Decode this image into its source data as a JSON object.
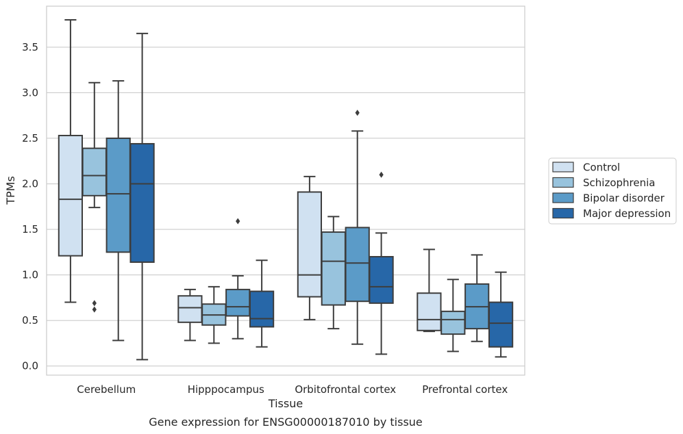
{
  "chart_data": {
    "type": "box",
    "title": "",
    "caption": "Gene expression for ENSG00000187010 by tissue",
    "xlabel": "Tissue",
    "ylabel": "TPMs",
    "ylim": [
      -0.1,
      3.95
    ],
    "yticks": [
      0.0,
      0.5,
      1.0,
      1.5,
      2.0,
      2.5,
      3.0,
      3.5
    ],
    "ytick_labels": [
      "0.0",
      "0.5",
      "1.0",
      "1.5",
      "2.0",
      "2.5",
      "3.0",
      "3.5"
    ],
    "grid": "horizontal",
    "legend_position": "right",
    "categories": [
      "Cerebellum",
      "Hipppocampus",
      "Orbitofrontal cortex",
      "Prefrontal cortex"
    ],
    "series": [
      {
        "name": "Control",
        "color": "#d0e1f1",
        "boxes": [
          {
            "whislo": 0.7,
            "q1": 1.21,
            "med": 1.83,
            "q3": 2.53,
            "whishi": 3.8,
            "fliers": []
          },
          {
            "whislo": 0.28,
            "q1": 0.48,
            "med": 0.64,
            "q3": 0.77,
            "whishi": 0.84,
            "fliers": []
          },
          {
            "whislo": 0.51,
            "q1": 0.76,
            "med": 1.0,
            "q3": 1.91,
            "whishi": 2.08,
            "fliers": []
          },
          {
            "whislo": 0.38,
            "q1": 0.39,
            "med": 0.51,
            "q3": 0.8,
            "whishi": 1.28,
            "fliers": []
          }
        ]
      },
      {
        "name": "Schizophrenia",
        "color": "#98c3dd",
        "boxes": [
          {
            "whislo": 1.74,
            "q1": 1.87,
            "med": 2.09,
            "q3": 2.39,
            "whishi": 3.11,
            "fliers": [
              0.69,
              0.62
            ]
          },
          {
            "whislo": 0.25,
            "q1": 0.45,
            "med": 0.56,
            "q3": 0.68,
            "whishi": 0.87,
            "fliers": []
          },
          {
            "whislo": 0.41,
            "q1": 0.67,
            "med": 1.15,
            "q3": 1.47,
            "whishi": 1.64,
            "fliers": []
          },
          {
            "whislo": 0.16,
            "q1": 0.35,
            "med": 0.51,
            "q3": 0.6,
            "whishi": 0.95,
            "fliers": []
          }
        ]
      },
      {
        "name": "Bipolar disorder",
        "color": "#5b9bc8",
        "boxes": [
          {
            "whislo": 0.28,
            "q1": 1.25,
            "med": 1.89,
            "q3": 2.5,
            "whishi": 3.13,
            "fliers": []
          },
          {
            "whislo": 0.3,
            "q1": 0.55,
            "med": 0.65,
            "q3": 0.84,
            "whishi": 0.99,
            "fliers": [
              1.59
            ]
          },
          {
            "whislo": 0.24,
            "q1": 0.71,
            "med": 1.13,
            "q3": 1.52,
            "whishi": 2.58,
            "fliers": [
              2.78
            ]
          },
          {
            "whislo": 0.27,
            "q1": 0.41,
            "med": 0.65,
            "q3": 0.9,
            "whishi": 1.22,
            "fliers": []
          }
        ]
      },
      {
        "name": "Major depression",
        "color": "#2767a8",
        "boxes": [
          {
            "whislo": 0.07,
            "q1": 1.14,
            "med": 2.0,
            "q3": 2.44,
            "whishi": 3.65,
            "fliers": []
          },
          {
            "whislo": 0.21,
            "q1": 0.43,
            "med": 0.52,
            "q3": 0.82,
            "whishi": 1.16,
            "fliers": []
          },
          {
            "whislo": 0.13,
            "q1": 0.69,
            "med": 0.87,
            "q3": 1.2,
            "whishi": 1.46,
            "fliers": [
              2.1
            ]
          },
          {
            "whislo": 0.1,
            "q1": 0.21,
            "med": 0.47,
            "q3": 0.7,
            "whishi": 1.03,
            "fliers": []
          }
        ]
      }
    ]
  }
}
